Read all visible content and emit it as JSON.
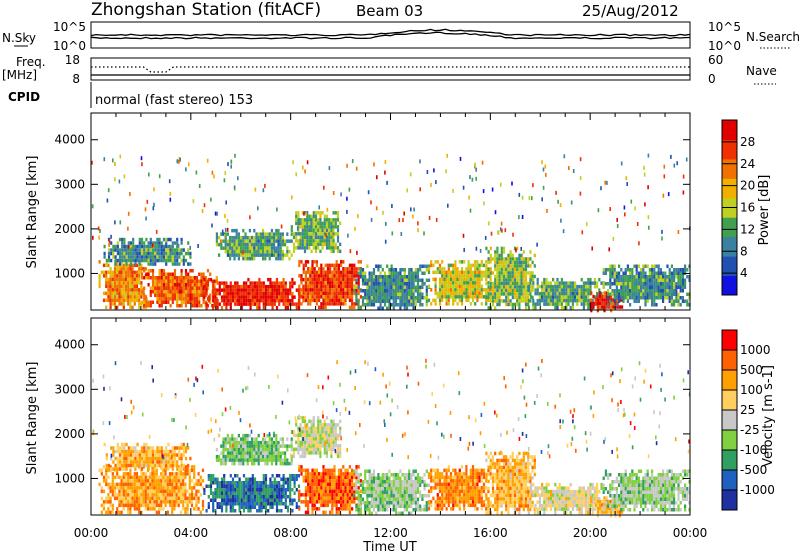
{
  "header": {
    "station": "Zhongshan Station (fitACF)",
    "beam": "Beam 03",
    "date": "25/Aug/2012"
  },
  "sky_panel": {
    "left_label": "N.Sky",
    "left_ticks": [
      "10^5",
      "10^0"
    ],
    "right_label": "N.Search",
    "right_ticks": [
      "10^5",
      "10^0"
    ]
  },
  "freq_panel": {
    "left_label_top": "Freq.",
    "left_label_bottom": "[MHz]",
    "left_ticks": [
      "18",
      "8"
    ],
    "right_label": "Nave",
    "right_ticks": [
      "60",
      "0"
    ]
  },
  "cpid": {
    "label": "CPID",
    "value": "normal (fast stereo) 153"
  },
  "time_axis": {
    "label": "Time UT",
    "ticks": [
      "00:00",
      "04:00",
      "08:00",
      "12:00",
      "16:00",
      "20:00",
      "00:00"
    ]
  },
  "colors": {
    "power_scale": [
      "#1010e0",
      "#2050b0",
      "#3a80a0",
      "#40a050",
      "#c0d020",
      "#f0b000",
      "#f07000",
      "#f03000",
      "#e00000"
    ],
    "velocity_scale": [
      "#ff0000",
      "#ff6000",
      "#ffa000",
      "#ffd060",
      "#c8c8c8",
      "#80d040",
      "#30a060",
      "#2060c0",
      "#2030a0"
    ]
  },
  "chart_data": [
    {
      "type": "heatmap",
      "panel": "power",
      "ylabel": "Slant Range [km]",
      "yticks": [
        1000,
        2000,
        3000,
        4000
      ],
      "ylim": [
        180,
        4600
      ],
      "xlim_hours": [
        0,
        24
      ],
      "colorbar": {
        "label": "Power [dB]",
        "ticks": [
          "4",
          "8",
          "12",
          "16",
          "20",
          "24",
          "28"
        ]
      },
      "regions": [
        {
          "t0": 0.3,
          "t1": 2.2,
          "r0": 250,
          "r1": 1300,
          "level": 0.7
        },
        {
          "t0": 2.0,
          "t1": 5.0,
          "r0": 250,
          "r1": 1100,
          "level": 0.8
        },
        {
          "t0": 4.5,
          "t1": 8.5,
          "r0": 250,
          "r1": 900,
          "level": 0.95
        },
        {
          "t0": 8.3,
          "t1": 10.8,
          "r0": 250,
          "r1": 1300,
          "level": 0.85
        },
        {
          "t0": 0.5,
          "t1": 4.0,
          "r0": 1200,
          "r1": 1800,
          "level": 0.3
        },
        {
          "t0": 5.0,
          "t1": 8.0,
          "r0": 1300,
          "r1": 2000,
          "level": 0.35
        },
        {
          "t0": 8.0,
          "t1": 10.0,
          "r0": 1500,
          "r1": 2400,
          "level": 0.4
        },
        {
          "t0": 10.5,
          "t1": 13.5,
          "r0": 250,
          "r1": 1200,
          "level": 0.3
        },
        {
          "t0": 13.5,
          "t1": 16.0,
          "r0": 300,
          "r1": 1300,
          "level": 0.55
        },
        {
          "t0": 15.8,
          "t1": 17.8,
          "r0": 250,
          "r1": 1600,
          "level": 0.45
        },
        {
          "t0": 17.5,
          "t1": 20.5,
          "r0": 250,
          "r1": 900,
          "level": 0.35
        },
        {
          "t0": 20.0,
          "t1": 21.3,
          "r0": 200,
          "r1": 600,
          "level": 0.95
        },
        {
          "t0": 20.5,
          "t1": 24.0,
          "r0": 300,
          "r1": 1200,
          "level": 0.3
        }
      ]
    },
    {
      "type": "heatmap",
      "panel": "velocity",
      "ylabel": "Slant Range [km]",
      "yticks": [
        1000,
        2000,
        3000,
        4000
      ],
      "ylim": [
        180,
        4600
      ],
      "xlim_hours": [
        0,
        24
      ],
      "colorbar": {
        "label": "Velocity [m s-1]",
        "ticks": [
          "1000",
          "500",
          "100",
          "25",
          "-25",
          "-100",
          "-500",
          "-1000"
        ]
      },
      "regions": [
        {
          "t0": 0.3,
          "t1": 4.5,
          "r0": 250,
          "r1": 1300,
          "level": 0.25
        },
        {
          "t0": 4.5,
          "t1": 8.3,
          "r0": 250,
          "r1": 1100,
          "level": 0.85
        },
        {
          "t0": 8.3,
          "t1": 10.8,
          "r0": 250,
          "r1": 1300,
          "level": 0.15
        },
        {
          "t0": 0.5,
          "t1": 4.0,
          "r0": 1200,
          "r1": 1800,
          "level": 0.3
        },
        {
          "t0": 5.0,
          "t1": 8.0,
          "r0": 1300,
          "r1": 2000,
          "level": 0.65
        },
        {
          "t0": 8.0,
          "t1": 10.0,
          "r0": 1500,
          "r1": 2400,
          "level": 0.5
        },
        {
          "t0": 10.5,
          "t1": 13.5,
          "r0": 250,
          "r1": 1200,
          "level": 0.6
        },
        {
          "t0": 13.5,
          "t1": 16.0,
          "r0": 300,
          "r1": 1300,
          "level": 0.2
        },
        {
          "t0": 15.8,
          "t1": 17.8,
          "r0": 250,
          "r1": 1600,
          "level": 0.3
        },
        {
          "t0": 17.5,
          "t1": 20.5,
          "r0": 250,
          "r1": 900,
          "level": 0.45
        },
        {
          "t0": 20.0,
          "t1": 21.3,
          "r0": 200,
          "r1": 600,
          "level": 0.3
        },
        {
          "t0": 20.5,
          "t1": 24.0,
          "r0": 300,
          "r1": 1200,
          "level": 0.6
        }
      ]
    }
  ]
}
